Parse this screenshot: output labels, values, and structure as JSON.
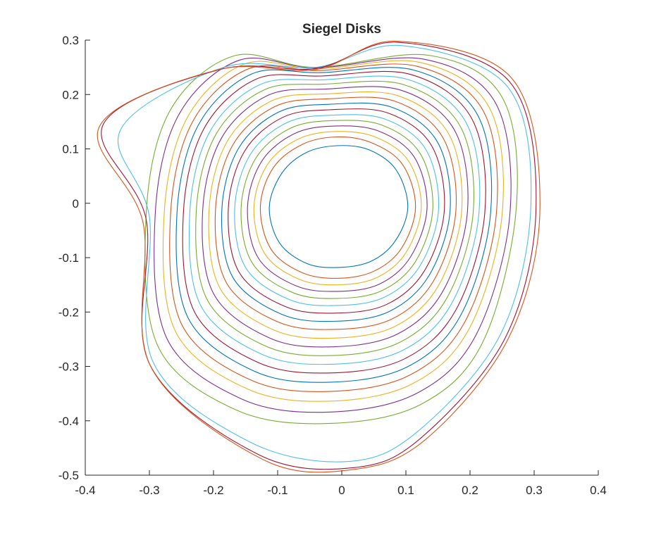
{
  "chart_data": {
    "type": "line",
    "title": "Siegel Disks",
    "xlabel": "",
    "ylabel": "",
    "xlim": [
      -0.4,
      0.4
    ],
    "ylim": [
      -0.5,
      0.3
    ],
    "xticks": [
      -0.4,
      -0.3,
      -0.2,
      -0.1,
      0,
      0.1,
      0.2,
      0.3,
      0.4
    ],
    "xtick_labels": [
      "-0.4",
      "-0.3",
      "-0.2",
      "-0.1",
      "0",
      "0.1",
      "0.2",
      "0.3",
      "0.4"
    ],
    "yticks": [
      -0.5,
      -0.4,
      -0.3,
      -0.2,
      -0.1,
      0,
      0.1,
      0.2,
      0.3
    ],
    "ytick_labels": [
      "-0.5",
      "-0.4",
      "-0.3",
      "-0.2",
      "-0.1",
      "0",
      "0.1",
      "0.2",
      "0.3"
    ],
    "grid": false,
    "legend": "none",
    "colors": [
      "#0072BD",
      "#D95319",
      "#EDB120",
      "#7E2F8E",
      "#77AC30",
      "#4DBEEE",
      "#A2142F"
    ],
    "series": [
      {
        "color": "#0072BD",
        "points": [
          [
            0.103,
            -0.007
          ],
          [
            0.085,
            0.061
          ],
          [
            0.043,
            0.098
          ],
          [
            -0.005,
            0.106
          ],
          [
            -0.054,
            0.094
          ],
          [
            -0.093,
            0.056
          ],
          [
            -0.113,
            -0.007
          ],
          [
            -0.097,
            -0.073
          ],
          [
            -0.054,
            -0.111
          ],
          [
            -0.005,
            -0.118
          ],
          [
            0.045,
            -0.107
          ],
          [
            0.083,
            -0.07
          ]
        ]
      },
      {
        "color": "#D95319",
        "points": [
          [
            0.115,
            -0.007
          ],
          [
            0.095,
            0.071
          ],
          [
            0.047,
            0.111
          ],
          [
            -0.008,
            0.122
          ],
          [
            -0.062,
            0.108
          ],
          [
            -0.107,
            0.065
          ],
          [
            -0.127,
            -0.007
          ],
          [
            -0.11,
            -0.085
          ],
          [
            -0.061,
            -0.128
          ],
          [
            -0.006,
            -0.138
          ],
          [
            0.05,
            -0.125
          ],
          [
            0.093,
            -0.083
          ]
        ]
      },
      {
        "color": "#EDB120",
        "points": [
          [
            0.124,
            -0.007
          ],
          [
            0.104,
            0.078
          ],
          [
            0.052,
            0.122
          ],
          [
            -0.01,
            0.132
          ],
          [
            -0.068,
            0.118
          ],
          [
            -0.116,
            0.071
          ],
          [
            -0.137,
            -0.008
          ],
          [
            -0.12,
            -0.093
          ],
          [
            -0.066,
            -0.14
          ],
          [
            -0.006,
            -0.15
          ],
          [
            0.054,
            -0.137
          ],
          [
            0.1,
            -0.091
          ]
        ]
      },
      {
        "color": "#7E2F8E",
        "points": [
          [
            0.133,
            -0.008
          ],
          [
            0.113,
            0.085
          ],
          [
            0.057,
            0.133
          ],
          [
            -0.012,
            0.142
          ],
          [
            -0.074,
            0.128
          ],
          [
            -0.125,
            0.077
          ],
          [
            -0.147,
            -0.008
          ],
          [
            -0.13,
            -0.101
          ],
          [
            -0.071,
            -0.152
          ],
          [
            -0.007,
            -0.162
          ],
          [
            0.058,
            -0.149
          ],
          [
            0.107,
            -0.099
          ]
        ]
      },
      {
        "color": "#77AC30",
        "points": [
          [
            0.142,
            -0.009
          ],
          [
            0.122,
            0.092
          ],
          [
            0.062,
            0.144
          ],
          [
            -0.014,
            0.152
          ],
          [
            -0.08,
            0.138
          ],
          [
            -0.134,
            0.083
          ],
          [
            -0.157,
            -0.009
          ],
          [
            -0.14,
            -0.109
          ],
          [
            -0.077,
            -0.164
          ],
          [
            -0.008,
            -0.175
          ],
          [
            0.062,
            -0.161
          ],
          [
            0.115,
            -0.107
          ]
        ]
      },
      {
        "color": "#4DBEEE",
        "points": [
          [
            0.151,
            -0.01
          ],
          [
            0.131,
            0.099
          ],
          [
            0.067,
            0.155
          ],
          [
            -0.016,
            0.162
          ],
          [
            -0.086,
            0.148
          ],
          [
            -0.143,
            0.089
          ],
          [
            -0.167,
            -0.01
          ],
          [
            -0.15,
            -0.118
          ],
          [
            -0.082,
            -0.177
          ],
          [
            -0.009,
            -0.188
          ],
          [
            0.066,
            -0.173
          ],
          [
            0.122,
            -0.115
          ]
        ]
      },
      {
        "color": "#A2142F",
        "points": [
          [
            0.16,
            -0.011
          ],
          [
            0.14,
            0.106
          ],
          [
            0.072,
            0.166
          ],
          [
            -0.018,
            0.172
          ],
          [
            -0.092,
            0.158
          ],
          [
            -0.152,
            0.095
          ],
          [
            -0.177,
            -0.011
          ],
          [
            -0.16,
            -0.127
          ],
          [
            -0.088,
            -0.19
          ],
          [
            -0.01,
            -0.202
          ],
          [
            0.07,
            -0.186
          ],
          [
            0.129,
            -0.124
          ]
        ]
      },
      {
        "color": "#0072BD",
        "points": [
          [
            0.169,
            -0.012
          ],
          [
            0.149,
            0.113
          ],
          [
            0.077,
            0.177
          ],
          [
            -0.02,
            0.182
          ],
          [
            -0.098,
            0.168
          ],
          [
            -0.161,
            0.101
          ],
          [
            -0.187,
            -0.012
          ],
          [
            -0.17,
            -0.136
          ],
          [
            -0.094,
            -0.204
          ],
          [
            -0.011,
            -0.217
          ],
          [
            0.074,
            -0.199
          ],
          [
            0.136,
            -0.133
          ]
        ]
      },
      {
        "color": "#D95319",
        "points": [
          [
            0.178,
            -0.013
          ],
          [
            0.158,
            0.12
          ],
          [
            0.082,
            0.188
          ],
          [
            -0.022,
            0.192
          ],
          [
            -0.104,
            0.178
          ],
          [
            -0.17,
            0.107
          ],
          [
            -0.197,
            -0.013
          ],
          [
            -0.18,
            -0.146
          ],
          [
            -0.1,
            -0.218
          ],
          [
            -0.012,
            -0.232
          ],
          [
            0.078,
            -0.213
          ],
          [
            0.143,
            -0.143
          ]
        ]
      },
      {
        "color": "#EDB120",
        "points": [
          [
            0.187,
            -0.014
          ],
          [
            0.167,
            0.127
          ],
          [
            0.087,
            0.198
          ],
          [
            -0.024,
            0.201
          ],
          [
            -0.11,
            0.188
          ],
          [
            -0.179,
            0.113
          ],
          [
            -0.207,
            -0.014
          ],
          [
            -0.19,
            -0.156
          ],
          [
            -0.106,
            -0.233
          ],
          [
            -0.013,
            -0.248
          ],
          [
            0.082,
            -0.227
          ],
          [
            0.15,
            -0.153
          ]
        ]
      },
      {
        "color": "#7E2F8E",
        "points": [
          [
            0.196,
            -0.015
          ],
          [
            0.176,
            0.134
          ],
          [
            0.092,
            0.208
          ],
          [
            -0.026,
            0.21
          ],
          [
            -0.116,
            0.198
          ],
          [
            -0.188,
            0.119
          ],
          [
            -0.217,
            -0.015
          ],
          [
            -0.2,
            -0.166
          ],
          [
            -0.112,
            -0.248
          ],
          [
            -0.014,
            -0.264
          ],
          [
            0.086,
            -0.241
          ],
          [
            0.157,
            -0.163
          ]
        ]
      },
      {
        "color": "#77AC30",
        "points": [
          [
            0.205,
            -0.016
          ],
          [
            0.185,
            0.141
          ],
          [
            0.097,
            0.218
          ],
          [
            -0.028,
            0.219
          ],
          [
            -0.122,
            0.208
          ],
          [
            -0.197,
            0.125
          ],
          [
            -0.227,
            -0.016
          ],
          [
            -0.21,
            -0.177
          ],
          [
            -0.118,
            -0.263
          ],
          [
            -0.015,
            -0.28
          ],
          [
            0.09,
            -0.256
          ],
          [
            0.164,
            -0.174
          ]
        ]
      },
      {
        "color": "#4DBEEE",
        "points": [
          [
            0.214,
            -0.017
          ],
          [
            0.194,
            0.148
          ],
          [
            0.102,
            0.228
          ],
          [
            -0.03,
            0.227
          ],
          [
            -0.128,
            0.218
          ],
          [
            -0.206,
            0.131
          ],
          [
            -0.237,
            -0.017
          ],
          [
            -0.22,
            -0.188
          ],
          [
            -0.124,
            -0.278
          ],
          [
            -0.016,
            -0.296
          ],
          [
            0.094,
            -0.271
          ],
          [
            0.171,
            -0.185
          ]
        ]
      },
      {
        "color": "#A2142F",
        "points": [
          [
            0.223,
            -0.018
          ],
          [
            0.203,
            0.155
          ],
          [
            0.107,
            0.237
          ],
          [
            -0.032,
            0.234
          ],
          [
            -0.134,
            0.228
          ],
          [
            -0.215,
            0.137
          ],
          [
            -0.247,
            -0.018
          ],
          [
            -0.23,
            -0.199
          ],
          [
            -0.13,
            -0.293
          ],
          [
            -0.017,
            -0.312
          ],
          [
            0.098,
            -0.286
          ],
          [
            0.178,
            -0.196
          ]
        ]
      },
      {
        "color": "#0072BD",
        "points": [
          [
            0.232,
            -0.019
          ],
          [
            0.212,
            0.162
          ],
          [
            0.112,
            0.245
          ],
          [
            -0.034,
            0.24
          ],
          [
            -0.14,
            0.238
          ],
          [
            -0.224,
            0.143
          ],
          [
            -0.257,
            -0.019
          ],
          [
            -0.24,
            -0.21
          ],
          [
            -0.136,
            -0.309
          ],
          [
            -0.018,
            -0.329
          ],
          [
            0.102,
            -0.301
          ],
          [
            0.185,
            -0.207
          ]
        ]
      },
      {
        "color": "#D95319",
        "points": [
          [
            0.241,
            -0.02
          ],
          [
            0.221,
            0.169
          ],
          [
            0.117,
            0.252
          ],
          [
            -0.036,
            0.244
          ],
          [
            -0.146,
            0.247
          ],
          [
            -0.233,
            0.149
          ],
          [
            -0.267,
            -0.02
          ],
          [
            -0.25,
            -0.222
          ],
          [
            -0.142,
            -0.325
          ],
          [
            -0.019,
            -0.346
          ],
          [
            0.106,
            -0.316
          ],
          [
            0.192,
            -0.218
          ]
        ]
      },
      {
        "color": "#EDB120",
        "points": [
          [
            0.25,
            -0.021
          ],
          [
            0.23,
            0.176
          ],
          [
            0.122,
            0.259
          ],
          [
            -0.038,
            0.247
          ],
          [
            -0.152,
            0.256
          ],
          [
            -0.242,
            0.155
          ],
          [
            -0.277,
            -0.021
          ],
          [
            -0.26,
            -0.234
          ],
          [
            -0.148,
            -0.341
          ],
          [
            -0.02,
            -0.364
          ],
          [
            0.11,
            -0.332
          ],
          [
            0.199,
            -0.23
          ]
        ]
      },
      {
        "color": "#7E2F8E",
        "points": [
          [
            0.262,
            -0.022
          ],
          [
            0.24,
            0.184
          ],
          [
            0.128,
            0.265
          ],
          [
            -0.04,
            0.249
          ],
          [
            -0.16,
            0.263
          ],
          [
            -0.255,
            0.161
          ],
          [
            -0.291,
            -0.022
          ],
          [
            -0.273,
            -0.248
          ],
          [
            -0.156,
            -0.36
          ],
          [
            -0.021,
            -0.384
          ],
          [
            0.116,
            -0.35
          ],
          [
            0.209,
            -0.243
          ]
        ]
      },
      {
        "color": "#77AC30",
        "points": [
          [
            0.272,
            -0.01
          ],
          [
            0.25,
            0.195
          ],
          [
            0.136,
            0.272
          ],
          [
            -0.042,
            0.25
          ],
          [
            -0.168,
            0.271
          ],
          [
            -0.268,
            0.17
          ],
          [
            -0.305,
            -0.02
          ],
          [
            -0.287,
            -0.262
          ],
          [
            -0.165,
            -0.38
          ],
          [
            -0.022,
            -0.405
          ],
          [
            0.123,
            -0.37
          ],
          [
            0.22,
            -0.255
          ]
        ]
      },
      {
        "color": "#4DBEEE",
        "points": [
          [
            0.295,
            0.0
          ],
          [
            0.258,
            0.215
          ],
          [
            0.093,
            0.29
          ],
          [
            -0.04,
            0.25
          ],
          [
            -0.184,
            0.25
          ],
          [
            -0.345,
            0.135
          ],
          [
            -0.3,
            -0.025
          ],
          [
            -0.295,
            -0.29
          ],
          [
            -0.145,
            -0.438
          ],
          [
            0.008,
            -0.475
          ],
          [
            0.118,
            -0.42
          ],
          [
            0.248,
            -0.24
          ]
        ]
      },
      {
        "color": "#A2142F",
        "points": [
          [
            0.303,
            -0.005
          ],
          [
            0.262,
            0.223
          ],
          [
            0.088,
            0.296
          ],
          [
            -0.04,
            0.248
          ],
          [
            -0.19,
            0.246
          ],
          [
            -0.372,
            0.145
          ],
          [
            -0.305,
            -0.03
          ],
          [
            -0.3,
            -0.295
          ],
          [
            -0.13,
            -0.462
          ],
          [
            0.02,
            -0.486
          ],
          [
            0.125,
            -0.43
          ],
          [
            0.256,
            -0.245
          ]
        ]
      },
      {
        "color": "#D95319",
        "points": [
          [
            0.309,
            -0.01
          ],
          [
            0.265,
            0.23
          ],
          [
            0.085,
            0.298
          ],
          [
            -0.04,
            0.246
          ],
          [
            -0.195,
            0.245
          ],
          [
            -0.378,
            0.141
          ],
          [
            -0.31,
            -0.035
          ],
          [
            -0.298,
            -0.3
          ],
          [
            -0.125,
            -0.47
          ],
          [
            0.015,
            -0.49
          ],
          [
            0.13,
            -0.435
          ],
          [
            0.26,
            -0.248
          ]
        ]
      }
    ]
  }
}
